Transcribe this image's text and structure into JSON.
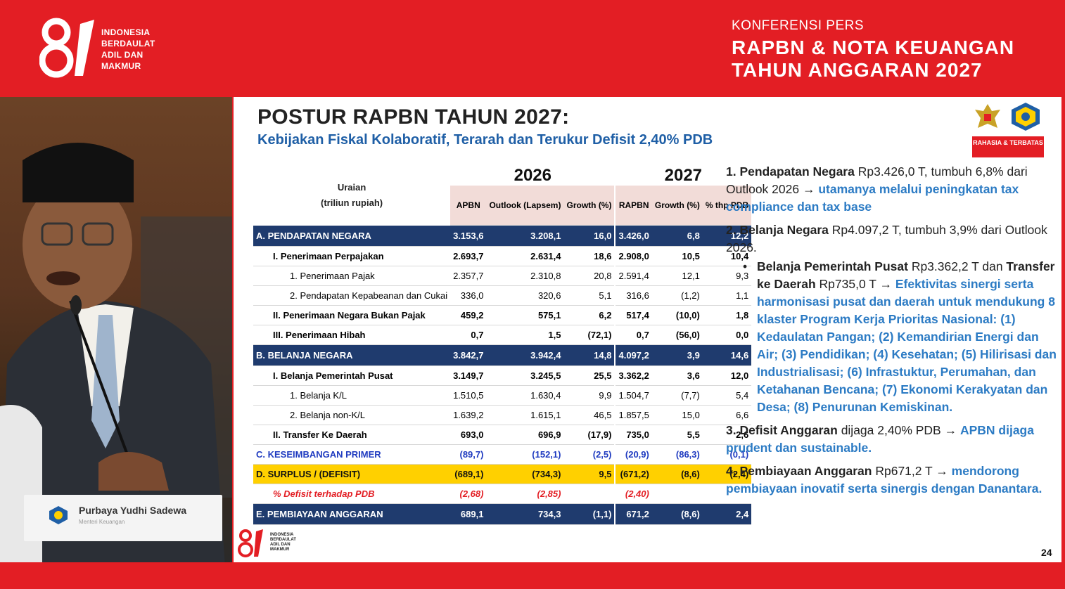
{
  "header": {
    "logo_text_lines": [
      "INDONESIA",
      "BERDAULAT",
      "ADIL DAN",
      "MAKMUR"
    ],
    "conf_small": "KONFERENSI PERS",
    "conf_line1": "RAPBN & NOTA KEUANGAN",
    "conf_line2": "TAHUN ANGGARAN 2027"
  },
  "video": {
    "nameplate_name": "Purbaya Yudhi Sadewa",
    "nameplate_title": "Menteri Keuangan"
  },
  "slide": {
    "title": "POSTUR RAPBN TAHUN 2027:",
    "subtitle": "Kebijakan Fiskal Kolaboratif, Terarah dan Terukur Defisit 2,40% PDB",
    "badge": "RAHASIA & TERBATAS",
    "page_number": "24",
    "logo_text": "INDONESIA BERDAULAT ADIL DAN MAKMUR",
    "table": {
      "uraian_line1": "Uraian",
      "uraian_line2": "(triliun rupiah)",
      "year_2026": "2026",
      "year_2027": "2027",
      "col_headers": [
        "APBN",
        "Outlook (Lapsem)",
        "Growth (%)",
        "RAPBN",
        "Growth (%)",
        "% thp PDB"
      ],
      "rows": [
        {
          "label": "A.    PENDAPATAN NEGARA",
          "vals": [
            "3.153,6",
            "3.208,1",
            "16,0",
            "3.426,0",
            "6,8",
            "12,2"
          ]
        },
        {
          "label": "I.   Penerimaan Perpajakan",
          "vals": [
            "2.693,7",
            "2.631,4",
            "18,6",
            "2.908,0",
            "10,5",
            "10,4"
          ]
        },
        {
          "label": "1.   Penerimaan Pajak",
          "vals": [
            "2.357,7",
            "2.310,8",
            "20,8",
            "2.591,4",
            "12,1",
            "9,3"
          ]
        },
        {
          "label": "2.   Pendapatan Kepabeanan dan Cukai",
          "vals": [
            "336,0",
            "320,6",
            "5,1",
            "316,6",
            "(1,2)",
            "1,1"
          ]
        },
        {
          "label": "II.  Penerimaan Negara Bukan Pajak",
          "vals": [
            "459,2",
            "575,1",
            "6,2",
            "517,4",
            "(10,0)",
            "1,8"
          ]
        },
        {
          "label": "III. Penerimaan Hibah",
          "vals": [
            "0,7",
            "1,5",
            "(72,1)",
            "0,7",
            "(56,0)",
            "0,0"
          ]
        },
        {
          "label": "B.    BELANJA NEGARA",
          "vals": [
            "3.842,7",
            "3.942,4",
            "14,8",
            "4.097,2",
            "3,9",
            "14,6"
          ]
        },
        {
          "label": "I.   Belanja Pemerintah Pusat",
          "vals": [
            "3.149,7",
            "3.245,5",
            "25,5",
            "3.362,2",
            "3,6",
            "12,0"
          ]
        },
        {
          "label": "1.   Belanja K/L",
          "vals": [
            "1.510,5",
            "1.630,4",
            "9,9",
            "1.504,7",
            "(7,7)",
            "5,4"
          ]
        },
        {
          "label": "2.   Belanja non-K/L",
          "vals": [
            "1.639,2",
            "1.615,1",
            "46,5",
            "1.857,5",
            "15,0",
            "6,6"
          ]
        },
        {
          "label": "II.  Transfer Ke Daerah",
          "vals": [
            "693,0",
            "696,9",
            "(17,9)",
            "735,0",
            "5,5",
            "2,6"
          ]
        },
        {
          "label": "C.    KESEIMBANGAN PRIMER",
          "vals": [
            "(89,7)",
            "(152,1)",
            "(2,5)",
            "(20,9)",
            "(86,3)",
            "(0,1)"
          ]
        },
        {
          "label": "D.    SURPLUS / (DEFISIT)",
          "vals": [
            "(689,1)",
            "(734,3)",
            "9,5",
            "(671,2)",
            "(8,6)",
            "(2,4)"
          ]
        },
        {
          "label": "% Defisit terhadap PDB",
          "vals": [
            "(2,68)",
            "(2,85)",
            "",
            "(2,40)",
            "",
            ""
          ]
        },
        {
          "label": "E.    PEMBIAYAAN ANGGARAN",
          "vals": [
            "689,1",
            "734,3",
            "(1,1)",
            "671,2",
            "(8,6)",
            "2,4"
          ]
        }
      ]
    },
    "points": {
      "p1_bold": "1. Pendapatan Negara",
      "p1_text": " Rp3.426,0 T, tumbuh 6,8% dari Outlook 2026 → ",
      "p1_hl": "utamanya melalui peningkatan tax compliance dan tax base",
      "p2_bold": "2. Belanja Negara",
      "p2_text": " Rp4.097,2 T, tumbuh 3,9% dari Outlook 2026.",
      "p2b_bold1": "Belanja Pemerintah Pusat",
      "p2b_text1": " Rp3.362,2 T dan ",
      "p2b_bold2": "Transfer ke Daerah",
      "p2b_text2": " Rp735,0 T → ",
      "p2b_hl": "Efektivitas sinergi serta harmonisasi pusat dan daerah untuk mendukung 8 klaster Program Kerja Prioritas Nasional: (1) Kedaulatan Pangan; (2) Kemandirian Energi dan Air; (3) Pendidikan; (4) Kesehatan; (5) Hilirisasi dan Industrialisasi; (6) Infrastuktur, Perumahan, dan Ketahanan Bencana; (7) Ekonomi Kerakyatan dan Desa; (8) Penurunan Kemiskinan.",
      "p3_bold": "3. Defisit Anggaran",
      "p3_text": " dijaga 2,40% PDB → ",
      "p3_hl": "APBN dijaga prudent dan sustainable.",
      "p4_bold": "4. Pembiayaan Anggaran",
      "p4_text": " Rp671,2 T → ",
      "p4_hl": "mendorong pembiayaan inovatif serta sinergis dengan Danantara."
    }
  },
  "colors": {
    "brand_red": "#e31e24",
    "table_blue": "#1f3b6e",
    "highlight_blue": "#2c7bc4",
    "surplus_yellow": "#ffd000"
  }
}
